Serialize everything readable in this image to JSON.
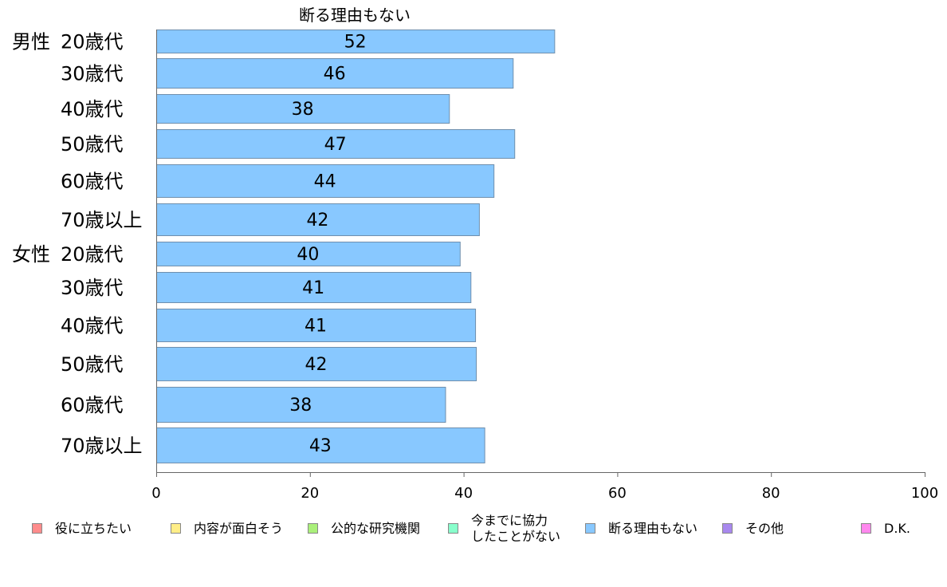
{
  "chart_data": {
    "type": "bar",
    "orientation": "horizontal",
    "title": "断る理由もない",
    "categories": [
      {
        "group": "男性",
        "label": "20歳代"
      },
      {
        "group": "",
        "label": "30歳代"
      },
      {
        "group": "",
        "label": "40歳代"
      },
      {
        "group": "",
        "label": "50歳代"
      },
      {
        "group": "",
        "label": "60歳代"
      },
      {
        "group": "",
        "label": "70歳以上"
      },
      {
        "group": "女性",
        "label": "20歳代"
      },
      {
        "group": "",
        "label": "30歳代"
      },
      {
        "group": "",
        "label": "40歳代"
      },
      {
        "group": "",
        "label": "50歳代"
      },
      {
        "group": "",
        "label": "60歳代"
      },
      {
        "group": "",
        "label": "70歳以上"
      }
    ],
    "values": [
      51.8,
      46.4,
      38.1,
      46.6,
      43.9,
      42.0,
      39.5,
      40.9,
      41.5,
      41.6,
      37.6,
      42.7
    ],
    "value_labels": [
      "52",
      "46",
      "38",
      "47",
      "44",
      "42",
      "40",
      "41",
      "41",
      "42",
      "38",
      "43"
    ],
    "xlim": [
      0,
      100
    ],
    "xticks": [
      0,
      20,
      40,
      60,
      80,
      100
    ],
    "bar_color": "#88c8ff",
    "grid": false,
    "legend_position": "bottom",
    "legend": [
      {
        "label": "役に立ちたい",
        "color": "#ff8c8c"
      },
      {
        "label": "内容が面白そう",
        "color": "#ffee88"
      },
      {
        "label": "公的な研究機関",
        "color": "#aaf07a"
      },
      {
        "label": "今までに協力\nしたことがない",
        "color": "#88ffcc"
      },
      {
        "label": "断る理由もない",
        "color": "#88c8ff"
      },
      {
        "label": "その他",
        "color": "#a888ee"
      },
      {
        "label": "D.K.",
        "color": "#ff88ee"
      }
    ]
  }
}
